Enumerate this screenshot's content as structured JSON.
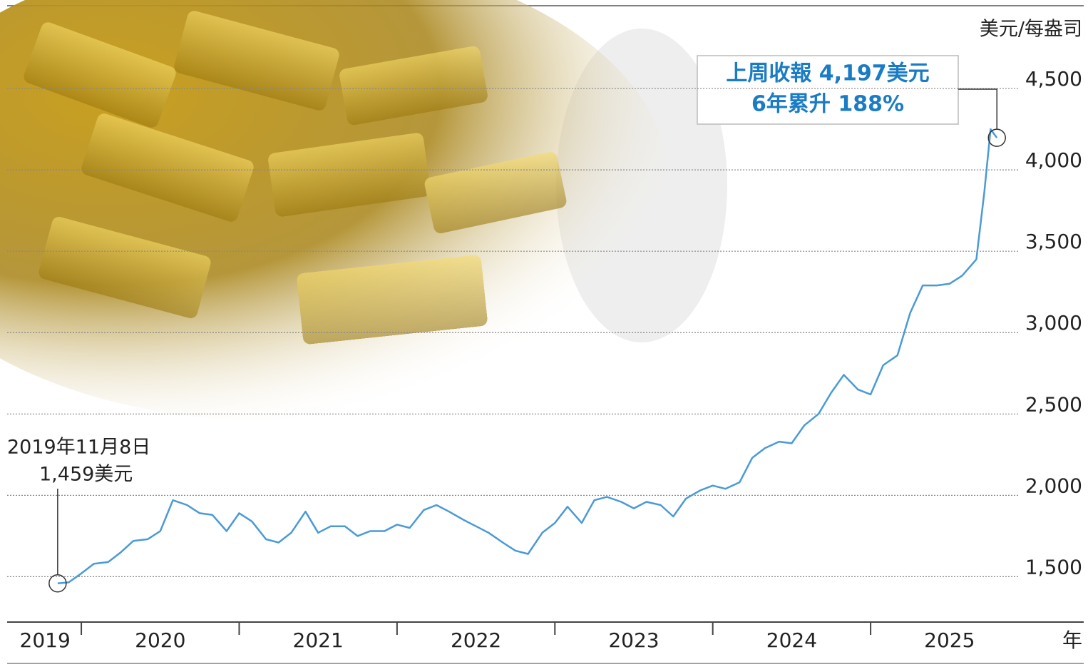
{
  "chart_data": {
    "type": "line",
    "unit_label": "美元/每盎司",
    "x_label": "年",
    "annotations": {
      "start_date": "2019年11月8日",
      "start_price": "1,459美元",
      "end_line1": "上周收報 4,197美元",
      "end_line2": "6年累升 188%"
    },
    "x": [
      2019.85,
      2019.92,
      2020.0,
      2020.08,
      2020.17,
      2020.25,
      2020.33,
      2020.42,
      2020.5,
      2020.58,
      2020.67,
      2020.75,
      2020.83,
      2020.92,
      2021.0,
      2021.08,
      2021.17,
      2021.25,
      2021.33,
      2021.42,
      2021.5,
      2021.58,
      2021.67,
      2021.75,
      2021.83,
      2021.92,
      2022.0,
      2022.08,
      2022.17,
      2022.25,
      2022.33,
      2022.42,
      2022.5,
      2022.58,
      2022.67,
      2022.75,
      2022.83,
      2022.92,
      2023.0,
      2023.08,
      2023.17,
      2023.25,
      2023.33,
      2023.42,
      2023.5,
      2023.58,
      2023.67,
      2023.75,
      2023.83,
      2023.92,
      2024.0,
      2024.08,
      2024.17,
      2024.25,
      2024.33,
      2024.42,
      2024.5,
      2024.58,
      2024.67,
      2024.75,
      2024.83,
      2024.92,
      2025.0,
      2025.08,
      2025.17,
      2025.25,
      2025.33,
      2025.42,
      2025.5,
      2025.58,
      2025.67,
      2025.72,
      2025.76,
      2025.8
    ],
    "values": [
      1459,
      1465,
      1520,
      1580,
      1590,
      1650,
      1720,
      1730,
      1780,
      1970,
      1940,
      1890,
      1880,
      1780,
      1890,
      1840,
      1730,
      1710,
      1770,
      1900,
      1770,
      1810,
      1810,
      1750,
      1780,
      1780,
      1820,
      1800,
      1910,
      1940,
      1900,
      1850,
      1810,
      1770,
      1710,
      1660,
      1640,
      1770,
      1830,
      1930,
      1830,
      1970,
      1990,
      1960,
      1920,
      1960,
      1940,
      1870,
      1980,
      2030,
      2060,
      2040,
      2080,
      2230,
      2290,
      2330,
      2320,
      2430,
      2500,
      2630,
      2740,
      2650,
      2620,
      2800,
      2860,
      3120,
      3290,
      3290,
      3300,
      3350,
      3450,
      3860,
      4250,
      4197
    ],
    "color": "#4a9ad6",
    "xlim": [
      2019.53,
      2026.35
    ],
    "xticks": [
      {
        "value": 2019.77,
        "label": "2019"
      },
      {
        "value": 2020.5,
        "label": "2020"
      },
      {
        "value": 2021.5,
        "label": "2021"
      },
      {
        "value": 2022.5,
        "label": "2022"
      },
      {
        "value": 2023.5,
        "label": "2023"
      },
      {
        "value": 2024.5,
        "label": "2024"
      },
      {
        "value": 2025.5,
        "label": "2025"
      }
    ],
    "ylim": [
      1230,
      5000
    ],
    "yticks": [
      {
        "value": 1500,
        "label": "1,500"
      },
      {
        "value": 2000,
        "label": "2,000"
      },
      {
        "value": 2500,
        "label": "2,500"
      },
      {
        "value": 3000,
        "label": "3,000"
      },
      {
        "value": 3500,
        "label": "3,500"
      },
      {
        "value": 4000,
        "label": "4,000"
      },
      {
        "value": 4500,
        "label": "4,500"
      }
    ],
    "grid": true
  }
}
